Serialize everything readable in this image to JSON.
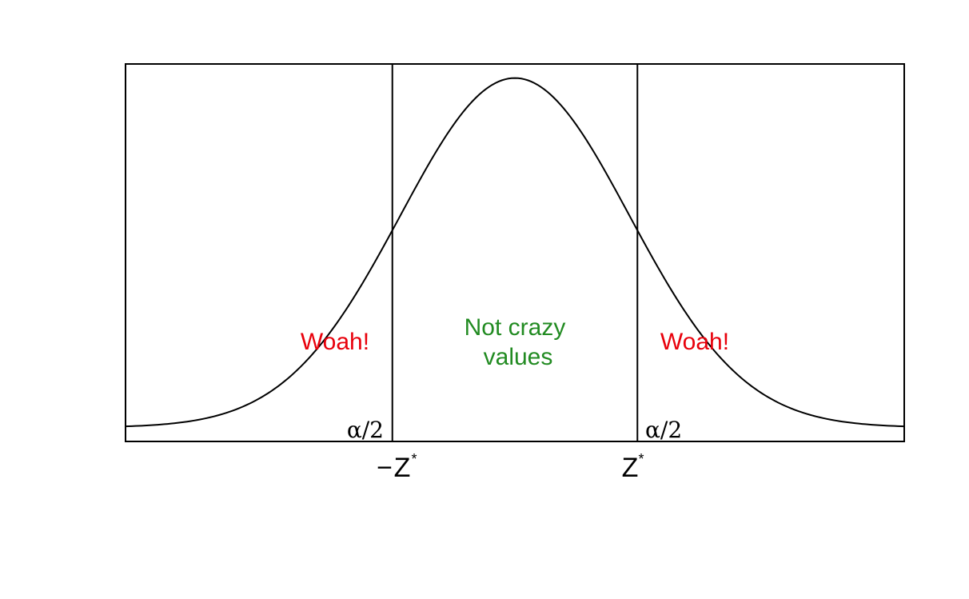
{
  "chart_data": {
    "type": "line",
    "title": "",
    "xlabel": "",
    "ylabel": "",
    "xlim": [
      -3.4,
      3.4
    ],
    "ylim": [
      -0.016,
      0.415
    ],
    "grid": false,
    "critical_value": 1.07,
    "series": [
      {
        "distribution": "standard-normal-density",
        "x": [
          -3.4,
          -3.0,
          -2.5,
          -2.0,
          -1.5,
          -1.07,
          -0.5,
          0.0,
          0.5,
          1.07,
          1.5,
          2.0,
          2.5,
          3.0,
          3.4
        ],
        "y": [
          0.0012,
          0.0044,
          0.0175,
          0.054,
          0.1295,
          0.2251,
          0.3521,
          0.3989,
          0.3521,
          0.2251,
          0.1295,
          0.054,
          0.0175,
          0.0044,
          0.0012
        ],
        "color": "#000000"
      }
    ],
    "tick_labels": [
      {
        "x": -1.07,
        "minus": "−",
        "text": "Z",
        "sup": "*"
      },
      {
        "x": 1.07,
        "minus": "",
        "text": "Z",
        "sup": "*"
      }
    ],
    "annotations": {
      "left_tail": "Woah!",
      "right_tail": "Woah!",
      "center_line1": "Not crazy",
      "center_line2": "values",
      "alpha_left": "α/2",
      "alpha_right": "α/2"
    },
    "colors": {
      "tail_text": "#e8000b",
      "center_text": "#228b22",
      "curve": "#000000"
    }
  }
}
